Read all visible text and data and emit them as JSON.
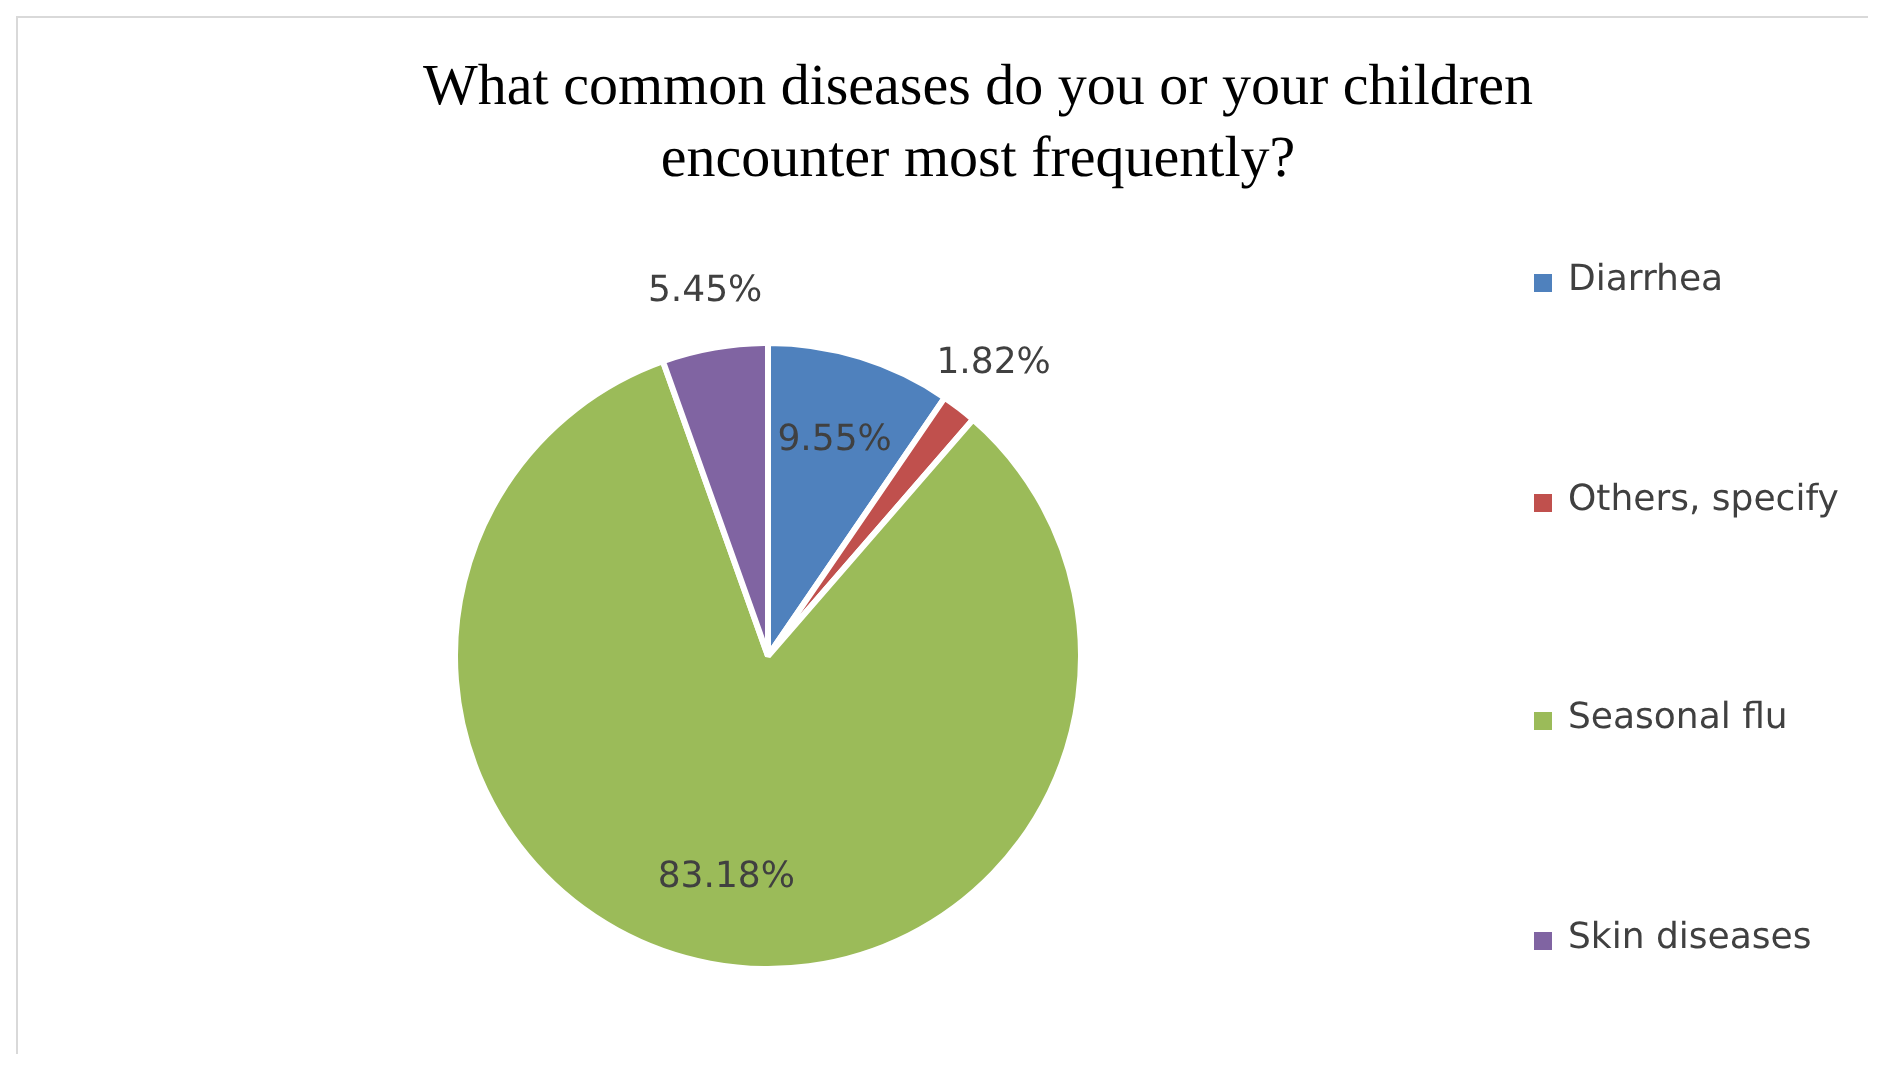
{
  "chart_data": {
    "type": "pie",
    "title": "What common diseases do you or your children encounter most frequently?",
    "categories": [
      "Diarrhea",
      "Others, specify",
      "Seasonal flu",
      "Skin diseases"
    ],
    "values": [
      9.55,
      1.82,
      83.18,
      5.45
    ],
    "colors": [
      "#4f81bd",
      "#c0504d",
      "#9bbb59",
      "#8064a2"
    ],
    "value_labels": [
      "9.55%",
      "1.82%",
      "83.18%",
      "5.45%"
    ],
    "legend": "right"
  }
}
